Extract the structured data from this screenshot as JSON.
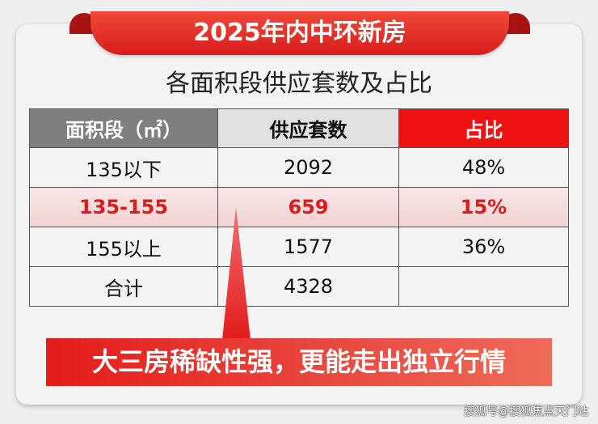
{
  "title": "2025年内中环新房",
  "subtitle": "各面积段供应套数及占比",
  "table": {
    "headers": [
      "面积段（㎡）",
      "供应套数",
      "占比"
    ],
    "rows": [
      [
        "135以下",
        "2092",
        "48%"
      ],
      [
        "135-155",
        "659",
        "15%"
      ],
      [
        "155以上",
        "1577",
        "36%"
      ],
      [
        "合计",
        "4328",
        ""
      ]
    ]
  },
  "highlight_row": 1,
  "callout": "大三房稀缺性强，更能走出独立行情",
  "watermark": "搜狐号@搜狐焦点天门站",
  "colors": {
    "accent": "#e41c1c",
    "header_gray": "#7f7f7f"
  }
}
